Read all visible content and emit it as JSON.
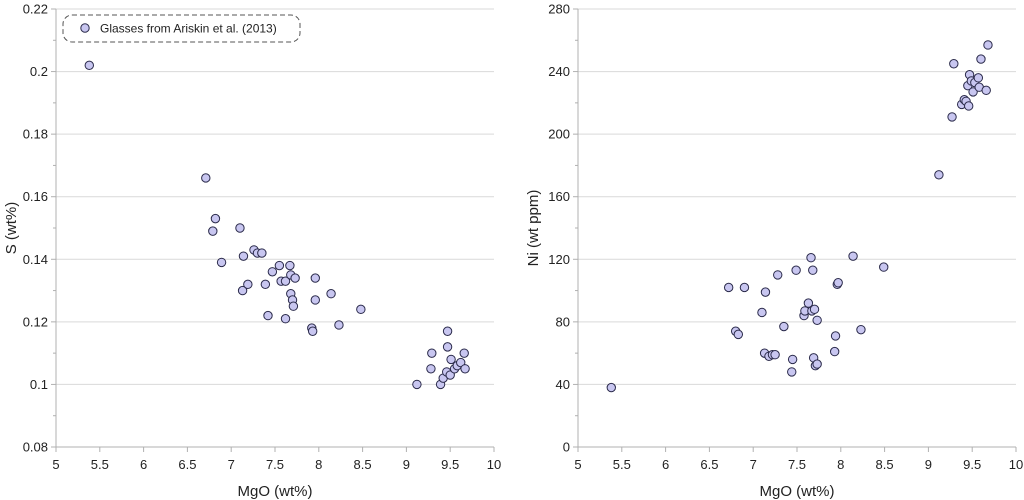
{
  "chart_data": [
    {
      "type": "scatter",
      "xlabel": "MgO (wt%)",
      "ylabel": "S (wt%)",
      "xlim": [
        5,
        10
      ],
      "ylim": [
        0.08,
        0.22
      ],
      "xticks": [
        5,
        5.5,
        6,
        6.5,
        7,
        7.5,
        8,
        8.5,
        9,
        9.5,
        10
      ],
      "xtick_labels": [
        "5",
        "5.5",
        "6",
        "6.5",
        "7",
        "7.5",
        "8",
        "8.5",
        "9",
        "9.5",
        "10"
      ],
      "yticks": [
        0.08,
        0.1,
        0.12,
        0.14,
        0.16,
        0.18,
        0.2,
        0.22
      ],
      "ytick_labels": [
        "0.08",
        "0.1",
        "0.12",
        "0.14",
        "0.16",
        "0.18",
        "0.2",
        "0.22"
      ],
      "grid": "horizontal",
      "legend_position": "top-left",
      "series": [
        {
          "name": "Glasses from Ariskin et al. (2013)",
          "x": [
            5.38,
            6.71,
            6.79,
            6.82,
            6.89,
            7.1,
            7.13,
            7.14,
            7.19,
            7.26,
            7.3,
            7.35,
            7.39,
            7.42,
            7.47,
            7.55,
            7.57,
            7.62,
            7.62,
            7.67,
            7.68,
            7.68,
            7.7,
            7.71,
            7.73,
            7.92,
            7.93,
            7.96,
            7.96,
            8.14,
            8.23,
            8.48,
            9.12,
            9.28,
            9.29,
            9.39,
            9.42,
            9.46,
            9.47,
            9.47,
            9.5,
            9.51,
            9.55,
            9.58,
            9.62,
            9.66,
            9.67
          ],
          "y": [
            0.202,
            0.166,
            0.149,
            0.153,
            0.139,
            0.15,
            0.13,
            0.141,
            0.132,
            0.143,
            0.142,
            0.142,
            0.132,
            0.122,
            0.136,
            0.138,
            0.133,
            0.121,
            0.133,
            0.138,
            0.135,
            0.129,
            0.127,
            0.125,
            0.134,
            0.118,
            0.117,
            0.127,
            0.134,
            0.129,
            0.119,
            0.124,
            0.1,
            0.105,
            0.11,
            0.1,
            0.102,
            0.104,
            0.112,
            0.117,
            0.103,
            0.108,
            0.105,
            0.106,
            0.107,
            0.11,
            0.105
          ]
        }
      ]
    },
    {
      "type": "scatter",
      "xlabel": "MgO (wt%)",
      "ylabel": "Ni (wt ppm)",
      "xlim": [
        5,
        10
      ],
      "ylim": [
        0,
        280
      ],
      "xticks": [
        5,
        5.5,
        6,
        6.5,
        7,
        7.5,
        8,
        8.5,
        9,
        9.5,
        10
      ],
      "xtick_labels": [
        "5",
        "5.5",
        "6",
        "6.5",
        "7",
        "7.5",
        "8",
        "8.5",
        "9",
        "9.5",
        "10"
      ],
      "yticks": [
        0,
        40,
        80,
        120,
        160,
        200,
        240,
        280
      ],
      "ytick_labels": [
        "0",
        "40",
        "80",
        "120",
        "160",
        "200",
        "240",
        "280"
      ],
      "grid": "horizontal",
      "series": [
        {
          "x": [
            5.38,
            6.72,
            6.8,
            6.83,
            6.9,
            7.1,
            7.13,
            7.14,
            7.18,
            7.22,
            7.25,
            7.28,
            7.35,
            7.44,
            7.45,
            7.49,
            7.58,
            7.59,
            7.63,
            7.66,
            7.67,
            7.68,
            7.69,
            7.7,
            7.71,
            7.73,
            7.73,
            7.93,
            7.94,
            7.96,
            7.97,
            8.14,
            8.23,
            8.49,
            9.12,
            9.27,
            9.29,
            9.38,
            9.41,
            9.43,
            9.45,
            9.46,
            9.47,
            9.49,
            9.51,
            9.53,
            9.57,
            9.58,
            9.6,
            9.66,
            9.68
          ],
          "y": [
            38,
            102,
            74,
            72,
            102,
            86,
            60,
            99,
            58,
            59,
            59,
            110,
            77,
            48,
            56,
            113,
            84,
            87,
            92,
            121,
            87,
            113,
            57,
            88,
            52,
            81,
            53,
            61,
            71,
            104,
            105,
            122,
            75,
            115,
            174,
            211,
            245,
            219,
            222,
            221,
            231,
            218,
            238,
            234,
            227,
            233,
            236,
            230,
            248,
            228,
            257
          ]
        }
      ]
    }
  ],
  "legend": {
    "label": "Glasses from Ariskin et al. (2013)"
  },
  "colors": {
    "marker_fill": "#c8c6f0",
    "marker_stroke": "#2a2a4a",
    "grid": "#d9d9d9",
    "axis": "#b0b0b0"
  }
}
